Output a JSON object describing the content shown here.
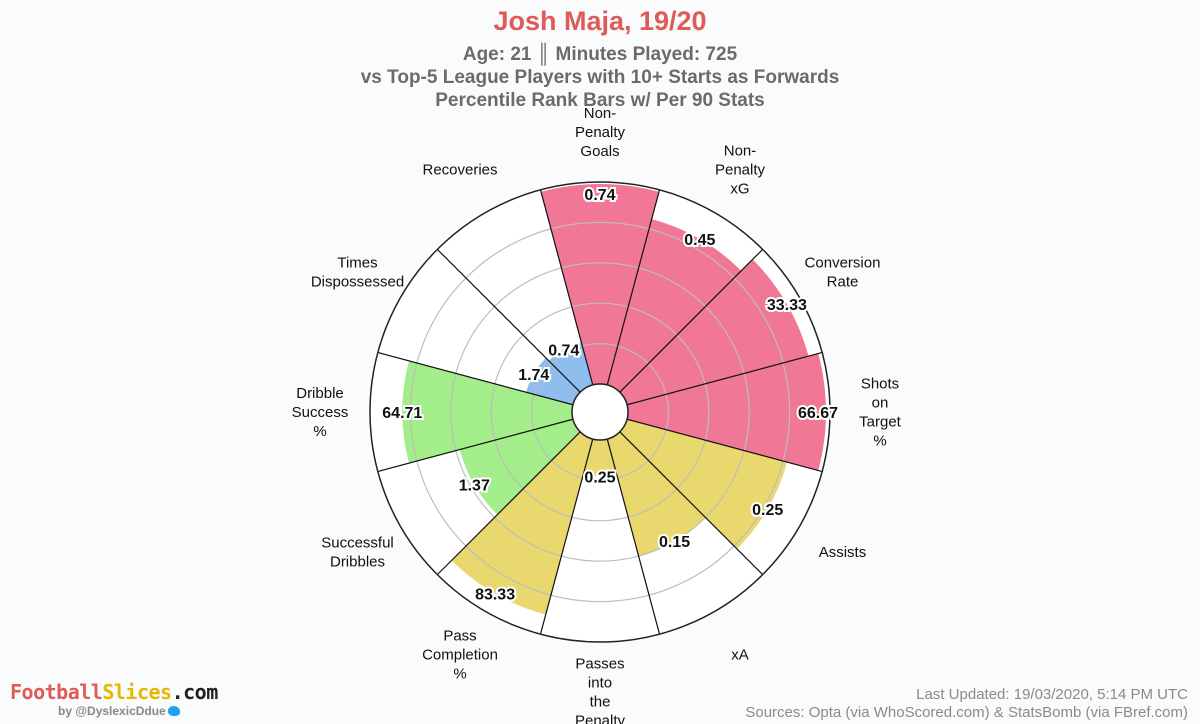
{
  "header": {
    "title": "Josh Maja, 19/20",
    "line1": "Age: 21 ║ Minutes Played: 725",
    "line2": "vs Top-5 League Players with 10+ Starts as Forwards",
    "line3": "Percentile Rank Bars w/ Per 90 Stats"
  },
  "footer": {
    "brand_part1": "Football",
    "brand_part2": "Slices",
    "brand_part3": ".com",
    "handle": "by @DyslexicDdue",
    "updated": "Last Updated: 19/03/2020, 5:14 PM UTC",
    "sources": "Sources: Opta (via WhoScored.com) & StatsBomb (via FBref.com)"
  },
  "chart_data": {
    "type": "radial-bar",
    "percentile_range": [
      0,
      100
    ],
    "grid": true,
    "categories": [
      {
        "label": "Non-\nPenalty\nGoals",
        "value_label": "0.74",
        "percentile": 99,
        "color": "#f07795"
      },
      {
        "label": "Non-\nPenalty\nxG",
        "value_label": "0.45",
        "percentile": 85,
        "color": "#f07795"
      },
      {
        "label": "Conversion\nRate",
        "value_label": "33.33",
        "percentile": 93,
        "color": "#f07795"
      },
      {
        "label": "Shots\non\nTarget\n%",
        "value_label": "66.67",
        "percentile": 98,
        "color": "#f07795"
      },
      {
        "label": "Assists",
        "value_label": "0.25",
        "percentile": 82,
        "color": "#e8d86d"
      },
      {
        "label": "xA",
        "value_label": "0.15",
        "percentile": 60,
        "color": "#e8d86d"
      },
      {
        "label": "Passes\ninto\nthe\nPenalty",
        "value_label": "0.25",
        "percentile": 18,
        "color": "#e8d86d"
      },
      {
        "label": "Pass\nCompletion\n%",
        "value_label": "83.33",
        "percentile": 90,
        "color": "#e8d86d"
      },
      {
        "label": "Successful\nDribbles",
        "value_label": "1.37",
        "percentile": 58,
        "color": "#a3ed8a"
      },
      {
        "label": "Dribble\nSuccess\n%",
        "value_label": "64.71",
        "percentile": 84,
        "color": "#a3ed8a"
      },
      {
        "label": "Times\nDispossessed",
        "value_label": "1.74",
        "percentile": 24,
        "color": "#8fbdee"
      },
      {
        "label": "Recoveries",
        "value_label": "0.74",
        "percentile": 22,
        "color": "#8fbdee"
      }
    ]
  }
}
